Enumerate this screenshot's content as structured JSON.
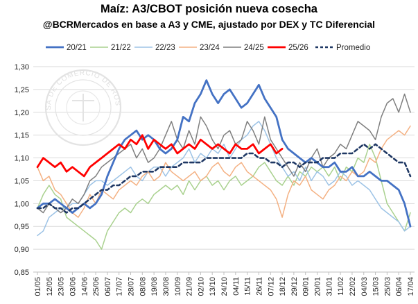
{
  "chart_data": {
    "type": "line",
    "title": "Maíz: A3/CBOT posición nueva cosecha",
    "subtitle": "@BCRMercados en base a A3 y CME, ajustado por DEX y TC Diferencial",
    "watermark": "BOLSA DE COMERCIO DE ROSARIO",
    "x_categories": [
      "01/05",
      "12/05",
      "23/05",
      "03/06",
      "14/06",
      "25/06",
      "06/07",
      "17/07",
      "28/07",
      "08/08",
      "19/08",
      "30/08",
      "10/09",
      "21/09",
      "02/10",
      "13/10",
      "24/10",
      "04/11",
      "15/11",
      "26/11",
      "07/12",
      "18/12",
      "29/12",
      "09/01",
      "20/01",
      "31/01",
      "11/02",
      "22/02",
      "04/03",
      "15/03",
      "25/03",
      "06/04",
      "17/04"
    ],
    "y_ticks": [
      "0,85",
      "0,90",
      "0,95",
      "1,00",
      "1,05",
      "1,10",
      "1,15",
      "1,20",
      "1,25",
      "1,30"
    ],
    "ylim": [
      0.85,
      1.3
    ],
    "legend_position": "top",
    "series": [
      {
        "name": "20/21",
        "color": "#4472C4",
        "width": 2.8,
        "dash": "",
        "x": [
          0,
          0.5,
          1,
          1.5,
          2,
          2.5,
          3,
          3.5,
          4,
          4.5,
          5,
          5.5,
          6,
          6.5,
          7,
          7.5,
          8,
          8.5,
          9,
          9.5,
          10,
          10.5,
          11,
          11.5,
          12,
          12.5,
          13,
          13.5,
          14,
          14.5,
          15,
          15.5,
          16,
          16.5,
          17,
          17.5,
          18,
          18.5,
          19,
          19.5,
          20,
          20.5,
          21,
          21.5,
          22,
          22.5,
          23,
          23.5,
          24,
          24.5,
          25,
          25.5,
          26,
          26.5,
          27,
          27.5,
          28,
          28.5,
          29,
          29.5,
          30,
          30.5,
          31,
          31.5,
          32
        ],
        "y": [
          0.99,
          1.0,
          1.0,
          1.01,
          1.0,
          0.99,
          0.98,
          0.99,
          1.0,
          0.99,
          1.0,
          1.02,
          1.06,
          1.09,
          1.12,
          1.14,
          1.15,
          1.16,
          1.14,
          1.15,
          1.14,
          1.12,
          1.11,
          1.12,
          1.14,
          1.19,
          1.18,
          1.22,
          1.24,
          1.27,
          1.24,
          1.22,
          1.24,
          1.25,
          1.23,
          1.21,
          1.22,
          1.24,
          1.26,
          1.23,
          1.21,
          1.19,
          1.14,
          1.12,
          1.11,
          1.1,
          1.09,
          1.1,
          1.09,
          1.08,
          1.08,
          1.09,
          1.07,
          1.07,
          1.08,
          1.06,
          1.06,
          1.07,
          1.06,
          1.05,
          1.05,
          1.04,
          1.03,
          1.0,
          0.95
        ]
      },
      {
        "name": "21/22",
        "color": "#A9D18E",
        "width": 1.5,
        "dash": "",
        "x": [
          0,
          0.5,
          1,
          1.5,
          2,
          2.5,
          3,
          3.5,
          4,
          4.5,
          5,
          5.5,
          6,
          6.5,
          7,
          7.5,
          8,
          8.5,
          9,
          9.5,
          10,
          10.5,
          11,
          11.5,
          12,
          12.5,
          13,
          13.5,
          14,
          14.5,
          15,
          15.5,
          16,
          16.5,
          17,
          17.5,
          18,
          18.5,
          19,
          19.5,
          20,
          20.5,
          21,
          21.5,
          22,
          22.5,
          23,
          23.5,
          24,
          24.5,
          25,
          25.5,
          26,
          26.5,
          27,
          27.5,
          28,
          28.5,
          29,
          29.5,
          30,
          30.5,
          31,
          31.5,
          32
        ],
        "y": [
          0.99,
          1.02,
          1.04,
          1.02,
          1.01,
          0.97,
          0.96,
          0.95,
          0.94,
          0.93,
          0.92,
          0.9,
          0.94,
          0.96,
          0.98,
          0.99,
          0.98,
          1.0,
          1.01,
          1.0,
          1.02,
          1.03,
          1.04,
          1.03,
          1.04,
          1.02,
          1.05,
          1.03,
          1.05,
          1.06,
          1.04,
          1.05,
          1.03,
          1.05,
          1.06,
          1.04,
          1.05,
          1.06,
          1.08,
          1.09,
          1.07,
          1.05,
          1.04,
          1.06,
          1.04,
          1.07,
          1.06,
          1.08,
          1.07,
          1.08,
          1.06,
          1.08,
          1.05,
          1.08,
          1.07,
          1.1,
          1.09,
          1.13,
          1.1,
          1.05,
          1.0,
          0.98,
          0.96,
          0.94,
          0.98
        ]
      },
      {
        "name": "22/23",
        "color": "#9DC3E6",
        "width": 1.5,
        "dash": "",
        "x": [
          0,
          0.5,
          1,
          1.5,
          2,
          2.5,
          3,
          3.5,
          4,
          4.5,
          5,
          5.5,
          6,
          6.5,
          7,
          7.5,
          8,
          8.5,
          9,
          9.5,
          10,
          10.5,
          11,
          11.5,
          12,
          12.5,
          13,
          13.5,
          14,
          14.5,
          15,
          15.5,
          16,
          16.5,
          17,
          17.5,
          18,
          18.5,
          19,
          19.5,
          20,
          20.5,
          21,
          21.5,
          22,
          22.5,
          23,
          23.5,
          24,
          24.5,
          25,
          25.5,
          26,
          26.5,
          27,
          27.5,
          28,
          28.5,
          29,
          29.5,
          30,
          30.5,
          31,
          31.5,
          32
        ],
        "y": [
          0.93,
          0.94,
          0.97,
          0.98,
          0.99,
          0.99,
          1.0,
          1.0,
          1.02,
          1.04,
          1.05,
          1.05,
          1.04,
          1.05,
          1.06,
          1.07,
          1.08,
          1.06,
          1.05,
          1.07,
          1.08,
          1.08,
          1.06,
          1.08,
          1.09,
          1.1,
          1.12,
          1.09,
          1.11,
          1.1,
          1.12,
          1.11,
          1.13,
          1.1,
          1.12,
          1.14,
          1.15,
          1.17,
          1.18,
          1.16,
          1.13,
          1.1,
          1.08,
          1.06,
          1.07,
          1.05,
          1.08,
          1.05,
          1.07,
          1.06,
          1.04,
          1.05,
          1.07,
          1.06,
          1.04,
          1.05,
          1.04,
          1.03,
          1.01,
          0.99,
          0.98,
          0.97,
          0.96,
          0.94,
          0.95
        ]
      },
      {
        "name": "23/24",
        "color": "#F4B183",
        "width": 1.5,
        "dash": "",
        "x": [
          0,
          0.5,
          1,
          1.5,
          2,
          2.5,
          3,
          3.5,
          4,
          4.5,
          5,
          5.5,
          6,
          6.5,
          7,
          7.5,
          8,
          8.5,
          9,
          9.5,
          10,
          10.5,
          11,
          11.5,
          12,
          12.5,
          13,
          13.5,
          14,
          14.5,
          15,
          15.5,
          16,
          16.5,
          17,
          17.5,
          18,
          18.5,
          19,
          19.5,
          20,
          20.5,
          21,
          21.5,
          22,
          22.5,
          23,
          23.5,
          24,
          24.5,
          25,
          25.5,
          26,
          26.5,
          27,
          27.5,
          28,
          28.5,
          29,
          29.5,
          30,
          30.5,
          31,
          31.5,
          32
        ],
        "y": [
          1.08,
          1.05,
          1.06,
          1.03,
          1.02,
          1.0,
          0.98,
          0.97,
          0.99,
          1.02,
          1.0,
          1.03,
          1.02,
          1.01,
          1.03,
          1.04,
          1.05,
          1.04,
          1.06,
          1.07,
          1.05,
          1.06,
          1.09,
          1.07,
          1.06,
          1.05,
          1.06,
          1.07,
          1.05,
          1.06,
          1.08,
          1.09,
          1.07,
          1.06,
          1.08,
          1.09,
          1.07,
          1.06,
          1.05,
          1.04,
          1.03,
          1.01,
          0.97,
          1.02,
          1.05,
          1.04,
          1.06,
          1.03,
          1.02,
          1.01,
          1.03,
          1.04,
          1.06,
          1.05,
          1.07,
          1.06,
          1.07,
          1.1,
          1.09,
          1.12,
          1.14,
          1.15,
          1.16,
          1.15,
          1.17
        ]
      },
      {
        "name": "24/25",
        "color": "#7F7F7F",
        "width": 1.5,
        "dash": "",
        "x": [
          0,
          0.5,
          1,
          1.5,
          2,
          2.5,
          3,
          3.5,
          4,
          4.5,
          5,
          5.5,
          6,
          6.5,
          7,
          7.5,
          8,
          8.5,
          9,
          9.5,
          10,
          10.5,
          11,
          11.5,
          12,
          12.5,
          13,
          13.5,
          14,
          14.5,
          15,
          15.5,
          16,
          16.5,
          17,
          17.5,
          18,
          18.5,
          19,
          19.5,
          20,
          20.5,
          21,
          21.5,
          22,
          22.5,
          23,
          23.5,
          24,
          24.5,
          25,
          25.5,
          26,
          26.5,
          27,
          27.5,
          28,
          28.5,
          29,
          29.5,
          30,
          30.5,
          31,
          31.5,
          32
        ],
        "y": [
          0.99,
          0.98,
          1.0,
          0.99,
          0.98,
          0.99,
          1.01,
          1.0,
          1.02,
          1.05,
          1.06,
          1.08,
          1.09,
          1.1,
          1.11,
          1.12,
          1.13,
          1.1,
          1.12,
          1.09,
          1.1,
          1.12,
          1.15,
          1.18,
          1.14,
          1.12,
          1.16,
          1.13,
          1.19,
          1.17,
          1.14,
          1.12,
          1.15,
          1.16,
          1.13,
          1.14,
          1.18,
          1.16,
          1.13,
          1.19,
          1.14,
          1.12,
          1.1,
          1.08,
          1.06,
          1.09,
          1.07,
          1.1,
          1.12,
          1.08,
          1.1,
          1.11,
          1.13,
          1.12,
          1.15,
          1.18,
          1.17,
          1.16,
          1.14,
          1.19,
          1.22,
          1.23,
          1.2,
          1.24,
          1.2
        ]
      },
      {
        "name": "25/26",
        "color": "#FF0000",
        "width": 2.8,
        "dash": "",
        "x": [
          0,
          0.5,
          1,
          1.5,
          2,
          2.5,
          3,
          3.5,
          4,
          4.5,
          5,
          5.5,
          6,
          6.5,
          7,
          7.5,
          8,
          8.5,
          9,
          9.5,
          10,
          10.5,
          11,
          11.5,
          12,
          12.5,
          13,
          13.5,
          14,
          14.5,
          15,
          15.5,
          16,
          16.5,
          17,
          17.5,
          18,
          18.5,
          19,
          19.5,
          20,
          20.5,
          21
        ],
        "y": [
          1.08,
          1.1,
          1.09,
          1.08,
          1.09,
          1.07,
          1.08,
          1.07,
          1.06,
          1.08,
          1.09,
          1.1,
          1.11,
          1.12,
          1.13,
          1.12,
          1.14,
          1.13,
          1.15,
          1.12,
          1.14,
          1.13,
          1.12,
          1.13,
          1.11,
          1.12,
          1.13,
          1.12,
          1.14,
          1.13,
          1.12,
          1.13,
          1.12,
          1.11,
          1.13,
          1.12,
          1.12,
          1.13,
          1.11,
          1.12,
          1.13,
          1.11,
          1.12
        ]
      },
      {
        "name": "Promedio",
        "color": "#1F3864",
        "width": 2.6,
        "dash": "5,4",
        "x": [
          0,
          0.5,
          1,
          1.5,
          2,
          2.5,
          3,
          3.5,
          4,
          4.5,
          5,
          5.5,
          6,
          6.5,
          7,
          7.5,
          8,
          8.5,
          9,
          9.5,
          10,
          10.5,
          11,
          11.5,
          12,
          12.5,
          13,
          13.5,
          14,
          14.5,
          15,
          15.5,
          16,
          16.5,
          17,
          17.5,
          18,
          18.5,
          19,
          19.5,
          20,
          20.5,
          21,
          21.5,
          22,
          22.5,
          23,
          23.5,
          24,
          24.5,
          25,
          25.5,
          26,
          26.5,
          27,
          27.5,
          28,
          28.5,
          29,
          29.5,
          30,
          30.5,
          31,
          31.5,
          32
        ],
        "y": [
          0.99,
          0.99,
          1.0,
          0.99,
          0.99,
          0.98,
          0.99,
          0.99,
          1.0,
          1.01,
          1.02,
          1.03,
          1.03,
          1.04,
          1.04,
          1.05,
          1.06,
          1.06,
          1.07,
          1.07,
          1.07,
          1.08,
          1.08,
          1.08,
          1.08,
          1.09,
          1.09,
          1.09,
          1.09,
          1.1,
          1.1,
          1.1,
          1.1,
          1.1,
          1.1,
          1.1,
          1.11,
          1.11,
          1.1,
          1.1,
          1.09,
          1.09,
          1.08,
          1.09,
          1.09,
          1.08,
          1.09,
          1.09,
          1.09,
          1.1,
          1.1,
          1.1,
          1.11,
          1.11,
          1.11,
          1.12,
          1.13,
          1.12,
          1.13,
          1.12,
          1.11,
          1.1,
          1.09,
          1.09,
          1.06
        ]
      }
    ]
  }
}
